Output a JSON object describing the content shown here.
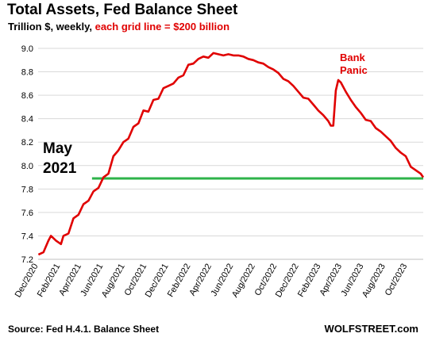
{
  "header": {
    "title": "Total Assets, Fed Balance Sheet",
    "subtitle_prefix": "Trillion $, weekly, ",
    "subtitle_highlight": "each grid line = $200 billion"
  },
  "footer": {
    "source": "Source: Fed H.4.1. Balance Sheet",
    "brand": "WOLFSTREET.com"
  },
  "colors": {
    "series": "#e00000",
    "reference": "#2db34a",
    "grid": "#d9d9d9",
    "annotation": "#e00000"
  },
  "chart_data": {
    "type": "line",
    "ylim": [
      7.2,
      9.0
    ],
    "yticks": [
      7.2,
      7.4,
      7.6,
      7.8,
      8.0,
      8.2,
      8.4,
      8.6,
      8.8,
      9.0
    ],
    "ytick_labels": [
      "7.2",
      "7.4",
      "7.6",
      "7.8",
      "8.0",
      "8.2",
      "8.4",
      "8.6",
      "8.8",
      "9.0"
    ],
    "grid": true,
    "x_range": [
      "2020-12-01",
      "2023-11-15"
    ],
    "xtick_labels": [
      "Dec/2020",
      "Feb/2021",
      "Apr/2021",
      "Jun/2021",
      "Aug/2021",
      "Oct/2021",
      "Dec/2021",
      "Feb/2022",
      "Apr/2022",
      "Jun/2022",
      "Aug/2022",
      "Oct/2022",
      "Dec/2022",
      "Feb/2023",
      "Apr/2023",
      "Jun/2023",
      "Aug/2023",
      "Oct/2023"
    ],
    "xtick_dates": [
      "2020-12-01",
      "2021-02-01",
      "2021-04-01",
      "2021-06-01",
      "2021-08-01",
      "2021-10-01",
      "2021-12-01",
      "2022-02-01",
      "2022-04-01",
      "2022-06-01",
      "2022-08-01",
      "2022-10-01",
      "2022-12-01",
      "2023-02-01",
      "2023-04-01",
      "2023-06-01",
      "2023-08-01",
      "2023-10-01"
    ],
    "series": [
      {
        "values": [
          [
            "2020-12-02",
            7.24
          ],
          [
            "2020-12-16",
            7.26
          ],
          [
            "2020-12-30",
            7.36
          ],
          [
            "2021-01-06",
            7.4
          ],
          [
            "2021-01-20",
            7.36
          ],
          [
            "2021-02-03",
            7.33
          ],
          [
            "2021-02-10",
            7.4
          ],
          [
            "2021-02-24",
            7.42
          ],
          [
            "2021-03-10",
            7.55
          ],
          [
            "2021-03-24",
            7.58
          ],
          [
            "2021-04-07",
            7.67
          ],
          [
            "2021-04-21",
            7.7
          ],
          [
            "2021-05-05",
            7.78
          ],
          [
            "2021-05-19",
            7.81
          ],
          [
            "2021-06-02",
            7.9
          ],
          [
            "2021-06-16",
            7.93
          ],
          [
            "2021-06-30",
            8.08
          ],
          [
            "2021-07-14",
            8.13
          ],
          [
            "2021-07-28",
            8.2
          ],
          [
            "2021-08-11",
            8.23
          ],
          [
            "2021-08-25",
            8.33
          ],
          [
            "2021-09-08",
            8.36
          ],
          [
            "2021-09-22",
            8.47
          ],
          [
            "2021-10-06",
            8.46
          ],
          [
            "2021-10-20",
            8.56
          ],
          [
            "2021-11-03",
            8.57
          ],
          [
            "2021-11-17",
            8.66
          ],
          [
            "2021-12-01",
            8.68
          ],
          [
            "2021-12-15",
            8.7
          ],
          [
            "2021-12-29",
            8.75
          ],
          [
            "2022-01-12",
            8.77
          ],
          [
            "2022-01-26",
            8.86
          ],
          [
            "2022-02-09",
            8.87
          ],
          [
            "2022-02-23",
            8.91
          ],
          [
            "2022-03-09",
            8.93
          ],
          [
            "2022-03-23",
            8.92
          ],
          [
            "2022-04-06",
            8.96
          ],
          [
            "2022-04-20",
            8.95
          ],
          [
            "2022-05-04",
            8.94
          ],
          [
            "2022-05-18",
            8.95
          ],
          [
            "2022-06-01",
            8.94
          ],
          [
            "2022-06-15",
            8.94
          ],
          [
            "2022-06-29",
            8.93
          ],
          [
            "2022-07-13",
            8.91
          ],
          [
            "2022-07-27",
            8.9
          ],
          [
            "2022-08-10",
            8.88
          ],
          [
            "2022-08-24",
            8.87
          ],
          [
            "2022-09-07",
            8.84
          ],
          [
            "2022-09-21",
            8.82
          ],
          [
            "2022-10-05",
            8.79
          ],
          [
            "2022-10-19",
            8.74
          ],
          [
            "2022-11-02",
            8.72
          ],
          [
            "2022-11-16",
            8.68
          ],
          [
            "2022-11-30",
            8.63
          ],
          [
            "2022-12-14",
            8.58
          ],
          [
            "2022-12-28",
            8.57
          ],
          [
            "2023-01-11",
            8.52
          ],
          [
            "2023-01-25",
            8.47
          ],
          [
            "2023-02-08",
            8.43
          ],
          [
            "2023-02-22",
            8.38
          ],
          [
            "2023-03-01",
            8.34
          ],
          [
            "2023-03-08",
            8.34
          ],
          [
            "2023-03-15",
            8.64
          ],
          [
            "2023-03-22",
            8.73
          ],
          [
            "2023-03-29",
            8.71
          ],
          [
            "2023-04-12",
            8.63
          ],
          [
            "2023-04-26",
            8.56
          ],
          [
            "2023-05-10",
            8.5
          ],
          [
            "2023-05-24",
            8.45
          ],
          [
            "2023-06-07",
            8.39
          ],
          [
            "2023-06-21",
            8.38
          ],
          [
            "2023-07-05",
            8.32
          ],
          [
            "2023-07-19",
            8.29
          ],
          [
            "2023-08-02",
            8.25
          ],
          [
            "2023-08-16",
            8.21
          ],
          [
            "2023-08-30",
            8.15
          ],
          [
            "2023-09-13",
            8.11
          ],
          [
            "2023-09-27",
            8.08
          ],
          [
            "2023-10-11",
            7.99
          ],
          [
            "2023-10-25",
            7.96
          ],
          [
            "2023-11-08",
            7.93
          ],
          [
            "2023-11-15",
            7.9
          ]
        ]
      }
    ],
    "reference_line": {
      "y": 7.89,
      "label_line1": "May",
      "label_line2": "2021",
      "start": "2021-05-01"
    },
    "annotations": [
      {
        "line1": "Bank",
        "line2": "Panic"
      }
    ]
  }
}
